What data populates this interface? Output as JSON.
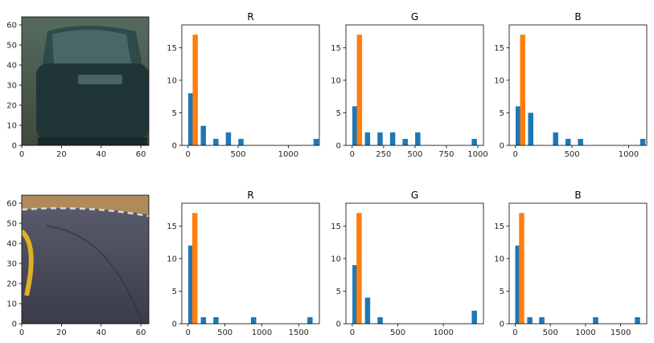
{
  "colors": {
    "series1": "#1f77b4",
    "series2": "#ff7f0e"
  },
  "chart_data": [
    {
      "type": "image",
      "image": "car-rear-thumbnail",
      "xlim": [
        0,
        64
      ],
      "ylim": [
        64,
        0
      ],
      "xticks": [
        0,
        20,
        40,
        60
      ],
      "yticks": [
        0,
        10,
        20,
        30,
        40,
        50,
        60
      ]
    },
    {
      "type": "bar",
      "title": "R",
      "xlim": [
        -62,
        1310
      ],
      "ylim": [
        0,
        18.5
      ],
      "xticks": [
        0,
        500,
        1000
      ],
      "yticks": [
        0,
        5,
        10,
        15
      ],
      "series": [
        {
          "color": "series1",
          "points": [
            [
              28,
              8
            ],
            [
              153,
              3
            ],
            [
              278,
              1
            ],
            [
              403,
              2
            ],
            [
              528,
              1
            ],
            [
              1278,
              1
            ]
          ]
        },
        {
          "color": "series2",
          "points": [
            [
              72,
              17
            ]
          ]
        }
      ]
    },
    {
      "type": "bar",
      "title": "G",
      "xlim": [
        -50,
        1045
      ],
      "ylim": [
        0,
        18.5
      ],
      "xticks": [
        0,
        250,
        500,
        750,
        1000
      ],
      "yticks": [
        0,
        5,
        10,
        15
      ],
      "series": [
        {
          "color": "series1",
          "points": [
            [
              22,
              6
            ],
            [
              122,
              2
            ],
            [
              222,
              2
            ],
            [
              322,
              2
            ],
            [
              422,
              1
            ],
            [
              522,
              2
            ],
            [
              972,
              1
            ]
          ]
        },
        {
          "color": "series2",
          "points": [
            [
              58,
              17
            ]
          ]
        }
      ]
    },
    {
      "type": "bar",
      "title": "B",
      "xlim": [
        -55,
        1160
      ],
      "ylim": [
        0,
        18.5
      ],
      "xticks": [
        0,
        500,
        1000
      ],
      "yticks": [
        0,
        5,
        10,
        15
      ],
      "series": [
        {
          "color": "series1",
          "points": [
            [
              25,
              6
            ],
            [
              135,
              5
            ],
            [
              355,
              2
            ],
            [
              465,
              1
            ],
            [
              575,
              1
            ],
            [
              1125,
              1
            ]
          ]
        },
        {
          "color": "series2",
          "points": [
            [
              64,
              17
            ]
          ]
        }
      ]
    },
    {
      "type": "image",
      "image": "road-curve-thumbnail",
      "xlim": [
        0,
        64
      ],
      "ylim": [
        64,
        0
      ],
      "xticks": [
        0,
        20,
        40,
        60
      ],
      "yticks": [
        0,
        10,
        20,
        30,
        40,
        50,
        60
      ]
    },
    {
      "type": "bar",
      "title": "R",
      "xlim": [
        -85,
        1780
      ],
      "ylim": [
        0,
        18.5
      ],
      "xticks": [
        0,
        500,
        1000,
        1500
      ],
      "yticks": [
        0,
        5,
        10,
        15
      ],
      "series": [
        {
          "color": "series1",
          "points": [
            [
              38,
              12
            ],
            [
              208,
              1
            ],
            [
              378,
              1
            ],
            [
              888,
              1
            ],
            [
              1653,
              1
            ]
          ]
        },
        {
          "color": "series2",
          "points": [
            [
              92,
              17
            ]
          ]
        }
      ]
    },
    {
      "type": "bar",
      "title": "G",
      "xlim": [
        -70,
        1440
      ],
      "ylim": [
        0,
        18.5
      ],
      "xticks": [
        0,
        500,
        1000
      ],
      "yticks": [
        0,
        5,
        10,
        15
      ],
      "series": [
        {
          "color": "series1",
          "points": [
            [
              30,
              9
            ],
            [
              168,
              4
            ],
            [
              306,
              1
            ],
            [
              1340,
              2
            ]
          ]
        },
        {
          "color": "series2",
          "points": [
            [
              75,
              17
            ]
          ]
        }
      ]
    },
    {
      "type": "bar",
      "title": "B",
      "xlim": [
        -85,
        1870
      ],
      "ylim": [
        0,
        18.5
      ],
      "xticks": [
        0,
        500,
        1000,
        1500
      ],
      "yticks": [
        0,
        5,
        10,
        15
      ],
      "series": [
        {
          "color": "series1",
          "points": [
            [
              38,
              12
            ],
            [
              208,
              1
            ],
            [
              378,
              1
            ],
            [
              1143,
              1
            ],
            [
              1738,
              1
            ]
          ]
        },
        {
          "color": "series2",
          "points": [
            [
              92,
              17
            ]
          ]
        }
      ]
    }
  ]
}
